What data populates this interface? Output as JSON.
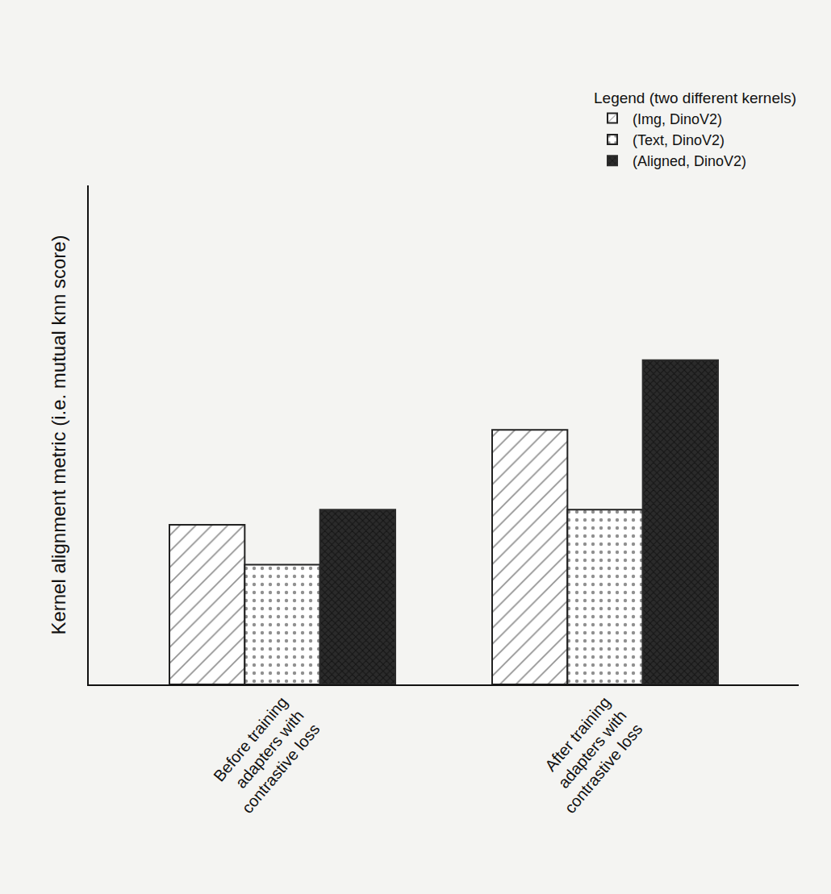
{
  "chart_data": {
    "type": "bar",
    "ylabel": "Kernel alignment metric (i.e. mutual knn score)",
    "legend_title": "Legend (two different kernels)",
    "categories": [
      "Before training adapters with contrastive loss",
      "After training adapters with contrastive loss"
    ],
    "series": [
      {
        "name": "(Img, DinoV2)",
        "color": "#222222",
        "marker": "hatched",
        "values": [
          32,
          51
        ]
      },
      {
        "name": "(Text, DinoV2)",
        "color": "#222222",
        "marker": "dotted",
        "values": [
          24,
          35
        ]
      },
      {
        "name": "(Aligned, DinoV2)",
        "color": "#2b2b2b",
        "marker": "filled",
        "values": [
          35,
          65
        ]
      }
    ],
    "ylim": [
      0,
      100
    ],
    "grid": false,
    "legend": "top right",
    "tick_labels": "x"
  }
}
